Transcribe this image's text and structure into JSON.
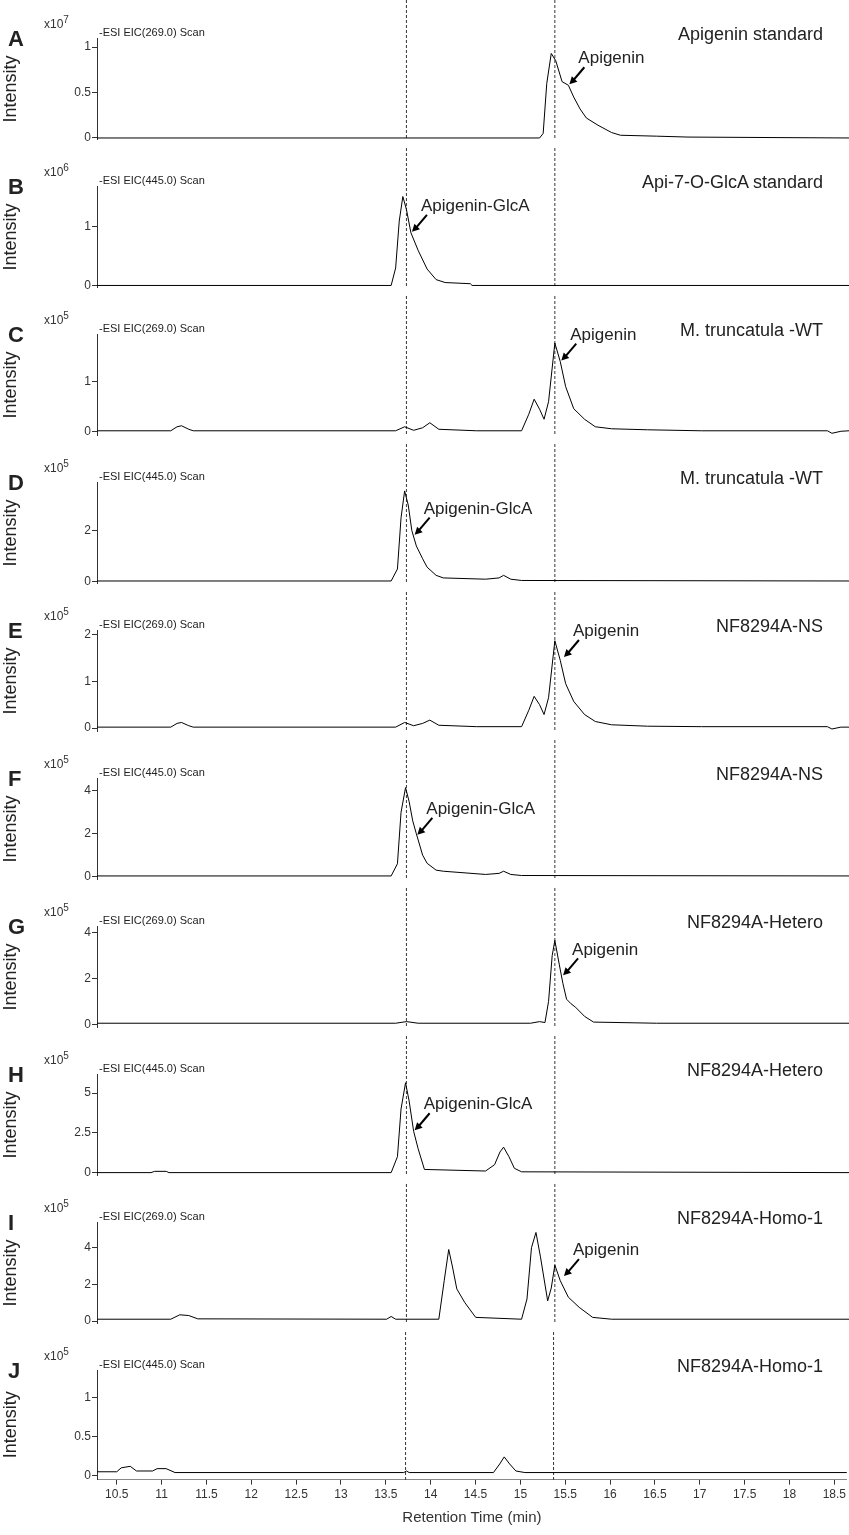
{
  "chart_data": [
    {
      "type": "line",
      "title": "A",
      "subtitle": "-ESI EIC(269.0) Scan",
      "ylabel": "Intensity",
      "annotations": [
        "x10$^{7}$",
        "Apigenin standard",
        {
          "text": "Apigenin",
          "x": 15.52,
          "y": 0.58
        }
      ],
      "x": [
        10.28,
        15.2,
        15.24,
        15.28,
        15.33,
        15.38,
        15.45,
        15.52,
        15.58,
        15.65,
        15.72,
        15.85,
        16.0,
        16.1,
        16.5,
        16.85,
        18.64
      ],
      "series": [
        {
          "color": "#000000",
          "values": [
            0,
            0,
            0.05,
            0.6,
            0.93,
            0.85,
            0.62,
            0.58,
            0.45,
            0.32,
            0.22,
            0.14,
            0.06,
            0.03,
            0.02,
            0.01,
            0
          ]
        }
      ],
      "xlim": [
        10.28,
        18.64
      ],
      "ylim": [
        -0.02,
        1.1
      ],
      "yticks": [
        0,
        0.5,
        1
      ],
      "tick_labels": "y",
      "ref_lines": [
        {
          "axis": "x",
          "value": 13.72,
          "color": "#000000",
          "line_style": "dashed"
        },
        {
          "axis": "x",
          "value": 15.37,
          "color": "#000000",
          "line_style": "dashed"
        }
      ]
    },
    {
      "type": "line",
      "title": "B",
      "subtitle": "-ESI EIC(445.0) Scan",
      "ylabel": "Intensity",
      "annotations": [
        "x10$^{6}$",
        "Api-7-O-GlcA standard",
        {
          "text": "Apigenin-GlcA",
          "x": 13.77,
          "y": 0.9
        }
      ],
      "x": [
        10.28,
        13.55,
        13.6,
        13.64,
        13.68,
        13.72,
        13.77,
        13.85,
        13.95,
        14.05,
        14.15,
        14.43,
        14.45,
        18.64
      ],
      "series": [
        {
          "color": "#000000",
          "values": [
            0,
            0,
            0.3,
            1.1,
            1.52,
            1.3,
            0.9,
            0.6,
            0.28,
            0.1,
            0.05,
            0.03,
            0,
            0
          ]
        }
      ],
      "xlim": [
        10.28,
        18.64
      ],
      "ylim": [
        -0.04,
        1.7
      ],
      "yticks": [
        0,
        1
      ],
      "tick_labels": "y",
      "ref_lines": [
        {
          "axis": "x",
          "value": 13.72,
          "color": "#000000",
          "line_style": "dashed"
        },
        {
          "axis": "x",
          "value": 15.37,
          "color": "#000000",
          "line_style": "dashed"
        }
      ]
    },
    {
      "type": "line",
      "title": "C",
      "subtitle": "-ESI EIC(269.0) Scan",
      "ylabel": "Intensity",
      "annotations": [
        "x10$^{5}$",
        "M. truncatula -WT",
        {
          "text": "Apigenin",
          "x": 15.43,
          "y": 1.4
        }
      ],
      "x": [
        10.28,
        11.1,
        11.17,
        11.22,
        11.3,
        11.35,
        13.6,
        13.7,
        13.8,
        13.9,
        13.98,
        14.08,
        14.5,
        15.0,
        15.08,
        15.14,
        15.2,
        15.25,
        15.3,
        15.37,
        15.43,
        15.49,
        15.58,
        15.7,
        15.82,
        16.0,
        16.4,
        17.0,
        18.4,
        18.45,
        18.55,
        18.64
      ],
      "series": [
        {
          "color": "#000000",
          "values": [
            0.02,
            0.02,
            0.1,
            0.12,
            0.05,
            0.02,
            0.02,
            0.1,
            0.03,
            0.08,
            0.18,
            0.05,
            0.02,
            0.02,
            0.35,
            0.65,
            0.45,
            0.25,
            0.6,
            1.77,
            1.4,
            0.9,
            0.46,
            0.25,
            0.1,
            0.06,
            0.04,
            0.02,
            0.02,
            -0.03,
            0.01,
            0.02
          ]
        }
      ],
      "xlim": [
        10.28,
        18.64
      ],
      "ylim": [
        -0.08,
        1.95
      ],
      "yticks": [
        0,
        1
      ],
      "tick_labels": "y",
      "ref_lines": [
        {
          "axis": "x",
          "value": 13.72,
          "color": "#000000",
          "line_style": "dashed"
        },
        {
          "axis": "x",
          "value": 15.37,
          "color": "#000000",
          "line_style": "dashed"
        }
      ]
    },
    {
      "type": "line",
      "title": "D",
      "subtitle": "-ESI EIC(445.0) Scan",
      "ylabel": "Intensity",
      "annotations": [
        "x10$^{5}$",
        "M. truncatula -WT",
        {
          "text": "Apigenin-GlcA",
          "x": 13.8,
          "y": 1.8
        }
      ],
      "x": [
        10.28,
        13.55,
        13.62,
        13.66,
        13.7,
        13.74,
        13.78,
        13.83,
        13.9,
        13.95,
        14.05,
        14.13,
        14.6,
        14.75,
        14.8,
        14.88,
        15.0,
        18.64
      ],
      "series": [
        {
          "color": "#000000",
          "values": [
            0.03,
            0.03,
            0.5,
            2.5,
            3.55,
            3.0,
            2.0,
            1.4,
            0.9,
            0.57,
            0.25,
            0.15,
            0.1,
            0.15,
            0.25,
            0.1,
            0.05,
            0.03
          ]
        }
      ],
      "xlim": [
        10.28,
        18.64
      ],
      "ylim": [
        -0.08,
        3.9
      ],
      "yticks": [
        0,
        2
      ],
      "tick_labels": "y",
      "ref_lines": [
        {
          "axis": "x",
          "value": 13.72,
          "color": "#000000",
          "line_style": "dashed"
        },
        {
          "axis": "x",
          "value": 15.37,
          "color": "#000000",
          "line_style": "dashed"
        }
      ]
    },
    {
      "type": "line",
      "title": "E",
      "subtitle": "-ESI EIC(269.0) Scan",
      "ylabel": "Intensity",
      "annotations": [
        "x10$^{5}$",
        "NF8294A-NS",
        {
          "text": "Apigenin",
          "x": 15.46,
          "y": 1.5
        }
      ],
      "x": [
        10.28,
        11.1,
        11.17,
        11.22,
        11.3,
        11.35,
        13.6,
        13.7,
        13.8,
        13.9,
        13.98,
        14.08,
        14.5,
        15.0,
        15.08,
        15.14,
        15.2,
        15.25,
        15.3,
        15.37,
        15.43,
        15.49,
        15.58,
        15.7,
        15.82,
        16.0,
        16.4,
        17.0,
        18.4,
        18.45,
        18.55,
        18.64
      ],
      "series": [
        {
          "color": "#000000",
          "values": [
            0.02,
            0.02,
            0.1,
            0.12,
            0.05,
            0.02,
            0.02,
            0.12,
            0.05,
            0.1,
            0.17,
            0.06,
            0.03,
            0.03,
            0.38,
            0.68,
            0.5,
            0.29,
            0.65,
            1.87,
            1.45,
            0.95,
            0.57,
            0.29,
            0.14,
            0.07,
            0.04,
            0.03,
            0.03,
            -0.02,
            0.02,
            0.02
          ]
        }
      ],
      "xlim": [
        10.28,
        18.64
      ],
      "ylim": [
        -0.08,
        2.1
      ],
      "yticks": [
        0,
        1,
        2
      ],
      "tick_labels": "y",
      "ref_lines": [
        {
          "axis": "x",
          "value": 13.72,
          "color": "#000000",
          "line_style": "dashed"
        },
        {
          "axis": "x",
          "value": 15.37,
          "color": "#000000",
          "line_style": "dashed"
        }
      ]
    },
    {
      "type": "line",
      "title": "F",
      "subtitle": "-ESI EIC(445.0) Scan",
      "ylabel": "Intensity",
      "annotations": [
        "x10$^{5}$",
        "NF8294A-NS",
        {
          "text": "Apigenin-GlcA",
          "x": 13.83,
          "y": 1.9
        }
      ],
      "x": [
        10.28,
        13.55,
        13.62,
        13.66,
        13.71,
        13.75,
        13.79,
        13.83,
        13.9,
        13.95,
        14.05,
        14.13,
        14.6,
        14.75,
        14.8,
        14.88,
        15.0,
        18.64
      ],
      "series": [
        {
          "color": "#000000",
          "values": [
            0.03,
            0.03,
            0.6,
            3.0,
            4.15,
            3.5,
            2.6,
            2.0,
            1.0,
            0.62,
            0.3,
            0.25,
            0.1,
            0.15,
            0.25,
            0.1,
            0.05,
            0.03
          ]
        }
      ],
      "xlim": [
        10.28,
        18.64
      ],
      "ylim": [
        -0.15,
        4.6
      ],
      "yticks": [
        0,
        2,
        4
      ],
      "tick_labels": "y",
      "ref_lines": [
        {
          "axis": "x",
          "value": 13.72,
          "color": "#000000",
          "line_style": "dashed"
        },
        {
          "axis": "x",
          "value": 15.37,
          "color": "#000000",
          "line_style": "dashed"
        }
      ]
    },
    {
      "type": "line",
      "title": "G",
      "subtitle": "-ESI EIC(269.0) Scan",
      "ylabel": "Intensity",
      "annotations": [
        "x10$^{5}$",
        "NF8294A-Hetero",
        {
          "text": "Apigenin",
          "x": 15.45,
          "y": 2.1
        }
      ],
      "x": [
        10.28,
        13.6,
        13.72,
        13.85,
        15.1,
        15.2,
        15.26,
        15.3,
        15.34,
        15.37,
        15.42,
        15.46,
        15.5,
        15.55,
        15.6,
        15.7,
        15.8,
        16.5,
        18.64
      ],
      "series": [
        {
          "color": "#000000",
          "values": [
            0.05,
            0.05,
            0.12,
            0.05,
            0.05,
            0.12,
            0.08,
            1.0,
            3.0,
            3.67,
            2.6,
            1.78,
            1.1,
            0.9,
            0.75,
            0.35,
            0.1,
            0.05,
            0.05
          ]
        }
      ],
      "xlim": [
        10.28,
        18.64
      ],
      "ylim": [
        -0.15,
        4.3
      ],
      "yticks": [
        0,
        2,
        4
      ],
      "tick_labels": "y",
      "ref_lines": [
        {
          "axis": "x",
          "value": 13.72,
          "color": "#000000",
          "line_style": "dashed"
        },
        {
          "axis": "x",
          "value": 15.37,
          "color": "#000000",
          "line_style": "dashed"
        }
      ]
    },
    {
      "type": "line",
      "title": "H",
      "subtitle": "-ESI EIC(445.0) Scan",
      "ylabel": "Intensity",
      "annotations": [
        "x10$^{5}$",
        "NF8294A-Hetero",
        {
          "text": "Apigenin-GlcA",
          "x": 13.8,
          "y": 2.6
        }
      ],
      "x": [
        10.28,
        10.88,
        10.92,
        11.05,
        11.08,
        13.55,
        13.62,
        13.66,
        13.71,
        13.75,
        13.8,
        13.85,
        13.92,
        14.6,
        14.7,
        14.76,
        14.8,
        14.86,
        14.92,
        15.0,
        18.64
      ],
      "series": [
        {
          "color": "#000000",
          "values": [
            0,
            0,
            0.08,
            0.08,
            0,
            0,
            1.0,
            4.0,
            5.65,
            4.5,
            2.6,
            1.5,
            0.2,
            0.1,
            0.5,
            1.3,
            1.6,
            1.0,
            0.27,
            0.05,
            0
          ]
        }
      ],
      "xlim": [
        10.28,
        18.64
      ],
      "ylim": [
        -0.2,
        6.2
      ],
      "yticks": [
        0,
        2.5,
        5
      ],
      "tick_labels": "y",
      "ref_lines": [
        {
          "axis": "x",
          "value": 13.72,
          "color": "#000000",
          "line_style": "dashed"
        },
        {
          "axis": "x",
          "value": 15.37,
          "color": "#000000",
          "line_style": "dashed"
        }
      ]
    },
    {
      "type": "line",
      "title": "I",
      "subtitle": "-ESI EIC(269.0) Scan",
      "ylabel": "Intensity",
      "annotations": [
        "x10$^{5}$",
        "NF8294A-Homo-1",
        {
          "text": "Apigenin",
          "x": 15.46,
          "y": 2.4
        }
      ],
      "x": [
        10.28,
        11.1,
        11.2,
        11.3,
        11.4,
        13.5,
        13.55,
        13.6,
        14.08,
        14.14,
        14.19,
        14.23,
        14.28,
        14.37,
        14.49,
        15.0,
        15.06,
        15.11,
        15.16,
        15.21,
        15.29,
        15.33,
        15.37,
        15.43,
        15.52,
        15.64,
        15.79,
        16.0,
        18.64
      ],
      "series": [
        {
          "color": "#000000",
          "values": [
            0.1,
            0.1,
            0.34,
            0.3,
            0.12,
            0.1,
            0.25,
            0.1,
            0.1,
            2.2,
            3.9,
            3.0,
            1.75,
            1.0,
            0.2,
            0.1,
            1.2,
            4.0,
            4.83,
            3.5,
            1.1,
            1.8,
            3.05,
            2.2,
            1.3,
            0.75,
            0.2,
            0.1,
            0.1
          ]
        }
      ],
      "xlim": [
        10.28,
        18.64
      ],
      "ylim": [
        -0.15,
        5.4
      ],
      "yticks": [
        0,
        2,
        4
      ],
      "tick_labels": "y",
      "ref_lines": [
        {
          "axis": "x",
          "value": 13.72,
          "color": "#000000",
          "line_style": "dashed"
        },
        {
          "axis": "x",
          "value": 15.37,
          "color": "#000000",
          "line_style": "dashed"
        }
      ]
    },
    {
      "type": "line",
      "title": "J",
      "subtitle": "-ESI EIC(445.0) Scan",
      "ylabel": "Intensity",
      "xlabel": "Retention Time (min)",
      "annotations": [
        "x10$^{5}$",
        "NF8294A-Homo-1"
      ],
      "x": [
        10.28,
        10.5,
        10.55,
        10.65,
        10.72,
        10.9,
        10.95,
        11.05,
        11.15,
        13.7,
        13.73,
        13.76,
        14.7,
        14.77,
        14.82,
        14.88,
        14.95,
        15.05,
        18.64
      ],
      "series": [
        {
          "color": "#000000",
          "values": [
            0.05,
            0.05,
            0.1,
            0.12,
            0.06,
            0.06,
            0.09,
            0.09,
            0.04,
            0.04,
            0.06,
            0.04,
            0.04,
            0.15,
            0.24,
            0.15,
            0.06,
            0.04,
            0.04
          ]
        }
      ],
      "xlim": [
        10.28,
        18.64
      ],
      "xticks": [
        10.5,
        11,
        11.5,
        12,
        12.5,
        13,
        13.5,
        14,
        14.5,
        15,
        15.5,
        16,
        16.5,
        17,
        17.5,
        18,
        18.5
      ],
      "ylim": [
        -0.05,
        1.35
      ],
      "yticks": [
        0,
        0.5,
        1
      ],
      "ref_lines": [
        {
          "axis": "x",
          "value": 13.72,
          "color": "#000000",
          "line_style": "dashed"
        },
        {
          "axis": "x",
          "value": 15.37,
          "color": "#000000",
          "line_style": "dashed"
        }
      ]
    }
  ]
}
